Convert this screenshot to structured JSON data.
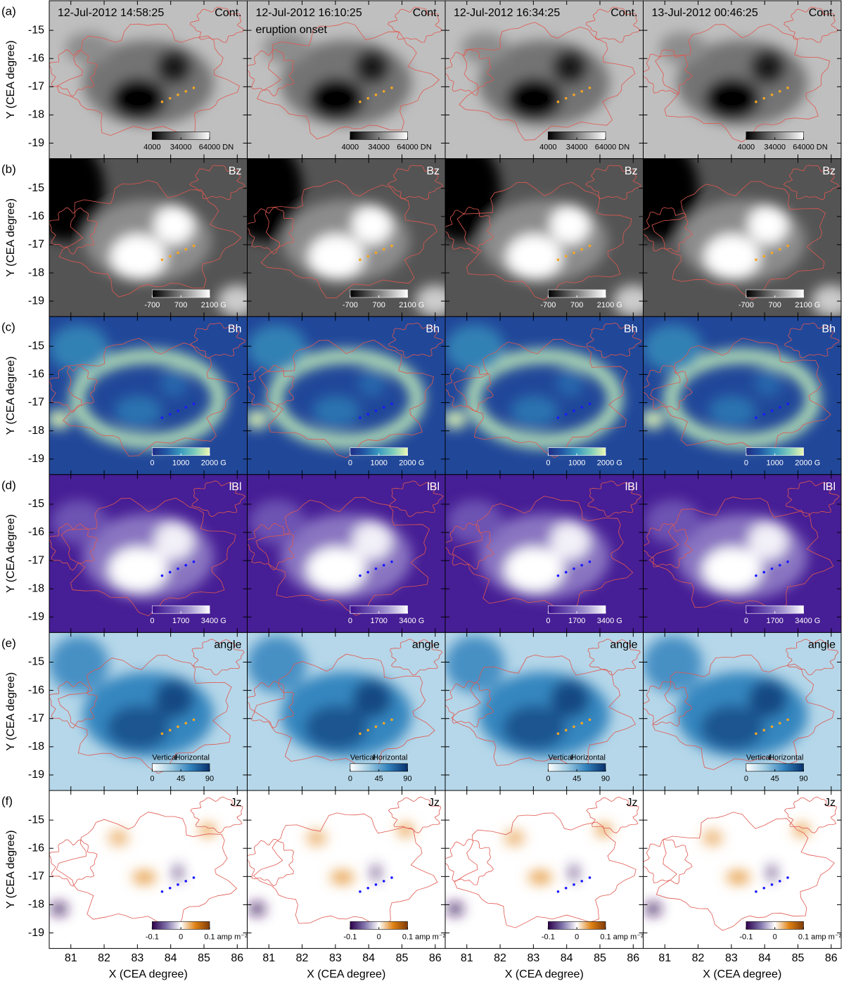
{
  "figure_type": "image-grid",
  "x_axis": {
    "title": "X (CEA degree)",
    "lim": [
      80.35,
      86.3
    ],
    "ticks": [
      81,
      82,
      83,
      84,
      85,
      86
    ]
  },
  "y_axis": {
    "title": "Y (CEA degree)",
    "lim": [
      -19.55,
      -13.95
    ],
    "ticks": [
      -15,
      -16,
      -17,
      -18,
      -19
    ]
  },
  "columns": [
    {
      "timestamp": "12-Jul-2012 14:58:25"
    },
    {
      "timestamp": "12-Jul-2012 16:10:25",
      "note": "eruption onset"
    },
    {
      "timestamp": "12-Jul-2012 16:34:25"
    },
    {
      "timestamp": "13-Jul-2012 00:46:25"
    }
  ],
  "rows": [
    {
      "label": "(a)",
      "quantity": "Cont.",
      "colormap": [
        "#000000",
        "#ffffff"
      ],
      "marker_color": "#f5a623",
      "colorbar": {
        "lim": [
          4000,
          64000
        ],
        "ticks": [
          4000,
          34000,
          64000
        ],
        "unit": "DN"
      }
    },
    {
      "label": "(b)",
      "quantity": "Bz",
      "colormap": [
        "#000000",
        "#ffffff"
      ],
      "marker_color": "#f5a623",
      "colorbar": {
        "lim": [
          -700,
          2100
        ],
        "ticks": [
          -700,
          700,
          2100
        ],
        "unit": "G"
      }
    },
    {
      "label": "(c)",
      "quantity": "Bh",
      "colormap": [
        "#1f2d86",
        "#2259a6",
        "#3a9bbf",
        "#7fcdbb",
        "#edf8b1"
      ],
      "marker_color": "#1a1aff",
      "colorbar": {
        "lim": [
          0,
          2000
        ],
        "ticks": [
          0,
          1000,
          2000
        ],
        "unit": "G"
      }
    },
    {
      "label": "(d)",
      "quantity": "lBl",
      "colormap": [
        "#3b0f8c",
        "#6a4fb0",
        "#a89bd2",
        "#ffffff"
      ],
      "marker_color": "#1a1aff",
      "colorbar": {
        "lim": [
          0,
          3400
        ],
        "ticks": [
          0,
          1700,
          3400
        ],
        "unit": "G"
      }
    },
    {
      "label": "(e)",
      "quantity": "angle",
      "colormap": [
        "#ffffff",
        "#9ecae1",
        "#3182bd",
        "#08306b"
      ],
      "marker_color": "#f5a623",
      "colorbar": {
        "lim": [
          0,
          90
        ],
        "ticks": [
          0,
          45,
          90
        ],
        "end_labels": [
          "Vertical",
          "Horizontal"
        ]
      }
    },
    {
      "label": "(f)",
      "quantity": "Jz",
      "colormap": [
        "#2d004b",
        "#8073ac",
        "#ffffff",
        "#e08214",
        "#7f3b08"
      ],
      "marker_color": "#1a1aff",
      "colorbar": {
        "lim": [
          -0.1,
          0.1
        ],
        "ticks": [
          -0.1,
          0,
          0.1
        ],
        "unit": "amp m⁻²"
      }
    }
  ]
}
